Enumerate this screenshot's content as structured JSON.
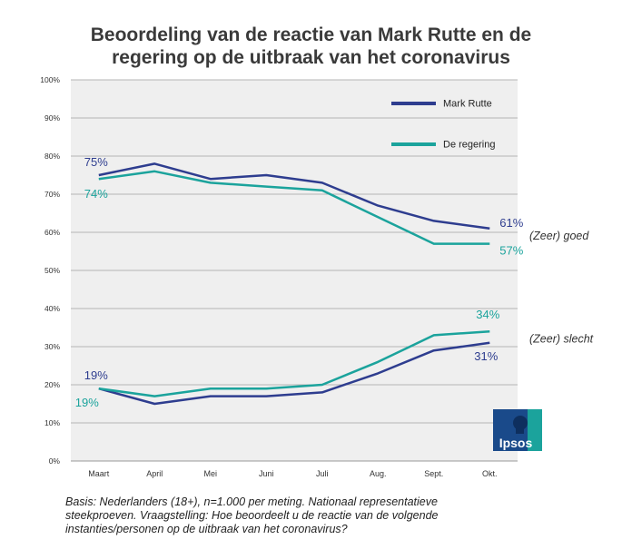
{
  "title_lines": [
    "Beoordeling van de reactie van Mark Rutte en de",
    "regering op de uitbraak van het coronavirus"
  ],
  "footnote": "Basis: Nederlanders (18+), n=1.000 per meting. Nationaal representatieve steekproeven. Vraagstelling: Hoe beoordeelt u de reactie van de volgende instanties/personen op de uitbraak van het coronavirus?",
  "colors": {
    "rutte": "#2e3d8f",
    "regering": "#1ba39c",
    "plot_bg": "#efefef",
    "grid": "#b5b5b5"
  },
  "logo": {
    "text": "Ipsos",
    "bg": "#1a4a8a",
    "accent": "#1ba39c",
    "icon": "ipsos-head-icon"
  },
  "chart_data": {
    "type": "line",
    "categories": [
      "Maart",
      "April",
      "Mei",
      "Juni",
      "Juli",
      "Aug.",
      "Sept.",
      "Okt."
    ],
    "ylim": [
      0,
      100
    ],
    "yticks": [
      "0%",
      "10%",
      "20%",
      "30%",
      "40%",
      "50%",
      "60%",
      "70%",
      "80%",
      "90%",
      "100%"
    ],
    "grid": true,
    "legend": {
      "placement": "top-right",
      "entries": [
        "Mark Rutte",
        "De regering"
      ]
    },
    "series": [
      {
        "name": "Mark Rutte",
        "group": "goed",
        "color": "#2e3d8f",
        "values": [
          75,
          78,
          74,
          75,
          73,
          67,
          63,
          61
        ]
      },
      {
        "name": "De regering",
        "group": "goed",
        "color": "#1ba39c",
        "values": [
          74,
          76,
          73,
          72,
          71,
          64,
          57,
          57
        ]
      },
      {
        "name": "Mark Rutte",
        "group": "slecht",
        "color": "#2e3d8f",
        "values": [
          19,
          15,
          17,
          17,
          18,
          23,
          29,
          31
        ]
      },
      {
        "name": "De regering",
        "group": "slecht",
        "color": "#1ba39c",
        "values": [
          19,
          17,
          19,
          19,
          20,
          26,
          33,
          34
        ]
      }
    ],
    "data_labels": [
      {
        "series": 0,
        "index": 0,
        "text": "75%",
        "color": "#2e3d8f"
      },
      {
        "series": 1,
        "index": 0,
        "text": "74%",
        "color": "#1ba39c"
      },
      {
        "series": 0,
        "index": 7,
        "text": "61%",
        "color": "#2e3d8f"
      },
      {
        "series": 1,
        "index": 7,
        "text": "57%",
        "color": "#1ba39c"
      },
      {
        "series": 2,
        "index": 0,
        "text": "19%",
        "color": "#2e3d8f"
      },
      {
        "series": 3,
        "index": 0,
        "text": "19%",
        "color": "#1ba39c"
      },
      {
        "series": 3,
        "index": 7,
        "text": "34%",
        "color": "#1ba39c"
      },
      {
        "series": 2,
        "index": 7,
        "text": "31%",
        "color": "#2e3d8f"
      }
    ],
    "group_labels": [
      {
        "text": "(Zeer) goed",
        "value": 59
      },
      {
        "text": "(Zeer) slecht",
        "value": 32
      }
    ]
  }
}
